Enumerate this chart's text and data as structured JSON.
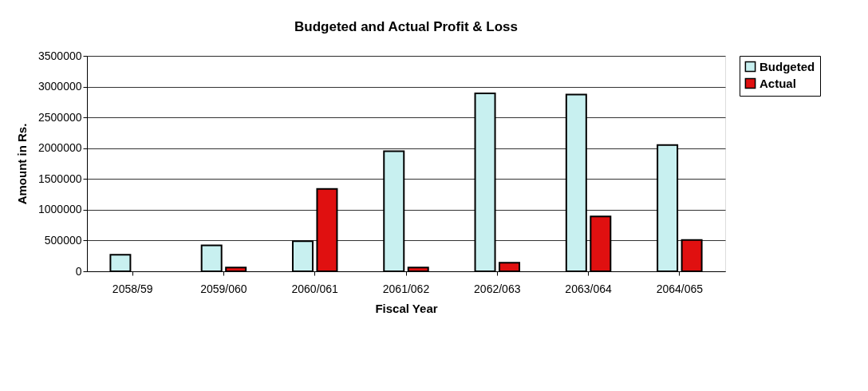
{
  "chart_data": {
    "type": "bar",
    "title": "Budgeted and Actual Profit & Loss",
    "xlabel": "Fiscal Year",
    "ylabel": "Amount in Rs.",
    "categories": [
      "2058/59",
      "2059/060",
      "2060/061",
      "2061/062",
      "2062/063",
      "2063/064",
      "2064/065"
    ],
    "series": [
      {
        "name": "Budgeted",
        "color": "#c8f0f0",
        "values": [
          270000,
          420000,
          490000,
          1950000,
          2890000,
          2870000,
          2050000
        ]
      },
      {
        "name": "Actual",
        "color": "#e01010",
        "values": [
          null,
          60000,
          1340000,
          60000,
          140000,
          890000,
          510000
        ]
      }
    ],
    "ylim": [
      0,
      3500000
    ],
    "yticks": [
      0,
      500000,
      1000000,
      1500000,
      2000000,
      2500000,
      3000000,
      3500000
    ],
    "grid": "y",
    "legend": "right"
  }
}
